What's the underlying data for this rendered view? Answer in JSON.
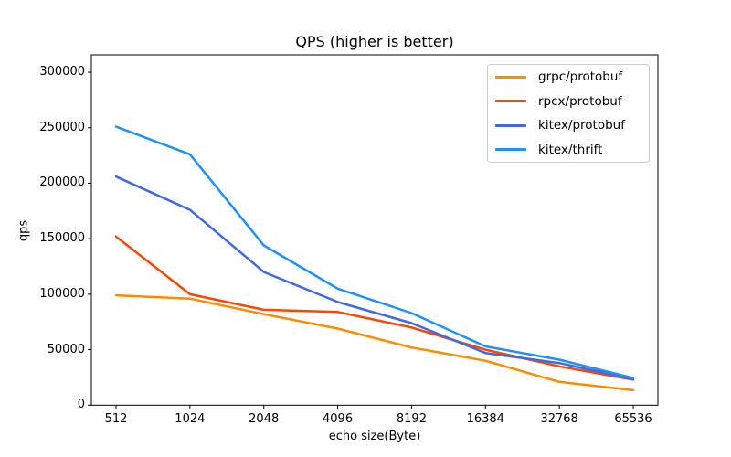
{
  "chart_data": {
    "type": "line",
    "title": "QPS (higher is better)",
    "xlabel": "echo size(Byte)",
    "ylabel": "qps",
    "categories": [
      "512",
      "1024",
      "2048",
      "4096",
      "8192",
      "16384",
      "32768",
      "65536"
    ],
    "series": [
      {
        "name": "grpc/protobuf",
        "color": "#ff8c00",
        "values": [
          99000,
          96000,
          82000,
          69000,
          52000,
          40000,
          21000,
          13500
        ]
      },
      {
        "name": "rpcx/protobuf",
        "color": "#ff4500",
        "values": [
          152000,
          100000,
          86000,
          84000,
          70000,
          50000,
          35000,
          23000
        ]
      },
      {
        "name": "kitex/protobuf",
        "color": "#4169e1",
        "values": [
          206000,
          176000,
          120000,
          93000,
          74000,
          47000,
          38000,
          23500
        ]
      },
      {
        "name": "kitex/thrift",
        "color": "#1e90ff",
        "values": [
          251000,
          226000,
          144000,
          105000,
          83000,
          53000,
          41000,
          24500
        ]
      }
    ],
    "yticks": [
      0,
      50000,
      100000,
      150000,
      200000,
      250000,
      300000
    ],
    "ylim": [
      0,
      315700
    ],
    "grid": false,
    "legend_position": "upper right",
    "line_width": 2.5,
    "axis_color": "#000000"
  }
}
